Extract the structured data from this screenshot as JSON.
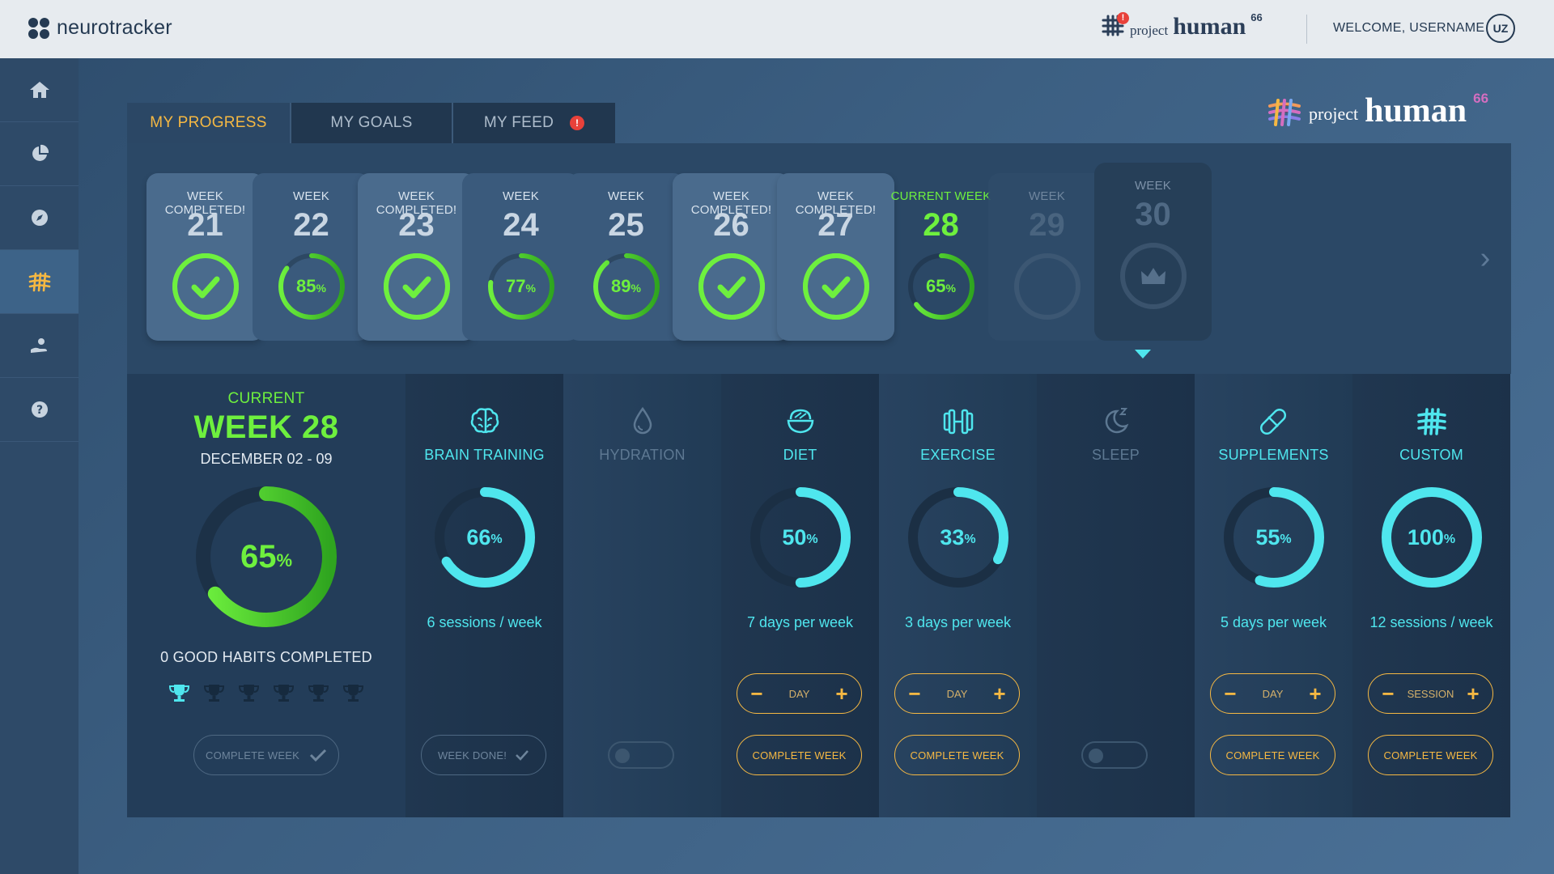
{
  "header": {
    "brand": "neurotracker",
    "partner_prefix": "project",
    "partner_name": "human",
    "partner_sup": "66",
    "notification_count": "!",
    "welcome": "WELCOME, USERNAME",
    "avatar_initials": "UZ"
  },
  "sidebar": {
    "items": [
      {
        "icon": "home-icon"
      },
      {
        "icon": "pie-chart-icon"
      },
      {
        "icon": "compass-icon"
      },
      {
        "icon": "project-human-icon",
        "active": true
      },
      {
        "icon": "hand-care-icon"
      },
      {
        "icon": "help-icon"
      }
    ]
  },
  "tabs": [
    {
      "label": "MY PROGRESS",
      "active": true
    },
    {
      "label": "MY GOALS"
    },
    {
      "label": "MY FEED",
      "alert": "!"
    }
  ],
  "brand_big": {
    "prefix": "project",
    "name": "human",
    "sup": "66"
  },
  "weeks": [
    {
      "label": "WEEK COMPLETED!",
      "number": "21",
      "status": "completed",
      "progress": 1.0
    },
    {
      "label": "WEEK",
      "number": "22",
      "status": "partial",
      "progress": 0.85,
      "pct": "85",
      "unit": "%"
    },
    {
      "label": "WEEK COMPLETED!",
      "number": "23",
      "status": "completed",
      "progress": 1.0
    },
    {
      "label": "WEEK",
      "number": "24",
      "status": "partial",
      "progress": 0.77,
      "pct": "77",
      "unit": "%"
    },
    {
      "label": "WEEK",
      "number": "25",
      "status": "partial",
      "progress": 0.89,
      "pct": "89",
      "unit": "%"
    },
    {
      "label": "WEEK COMPLETED!",
      "number": "26",
      "status": "completed",
      "progress": 1.0
    },
    {
      "label": "WEEK COMPLETED!",
      "number": "27",
      "status": "completed",
      "progress": 1.0
    },
    {
      "label": "CURRENT WEEK",
      "number": "28",
      "status": "current",
      "progress": 0.65,
      "pct": "65",
      "unit": "%"
    },
    {
      "label": "WEEK",
      "number": "29",
      "status": "future",
      "progress": 0
    },
    {
      "label": "WEEK",
      "number": "30",
      "status": "future2",
      "progress": 0
    }
  ],
  "summary": {
    "current_label": "CURRENT",
    "week_title": "WEEK 28",
    "dates": "DECEMBER 02 - 09",
    "progress": 0.65,
    "pct": "65",
    "unit": "%",
    "habits": "0 GOOD HABITS COMPLETED",
    "trophies_earned": 1,
    "trophies_total": 6,
    "button": "COMPLETE WEEK"
  },
  "categories": [
    {
      "name": "BRAIN TRAINING",
      "icon": "brain-icon",
      "active": true,
      "progress": 0.66,
      "pct": "66",
      "unit": "%",
      "freq": "6 sessions / week",
      "button": "WEEK DONE!",
      "button_dim": true,
      "button_check": true
    },
    {
      "name": "HYDRATION",
      "icon": "water-drop-icon",
      "active": false,
      "toggle": true
    },
    {
      "name": "DIET",
      "icon": "bowl-icon",
      "active": true,
      "progress": 0.5,
      "pct": "50",
      "unit": "%",
      "freq": "7 days per week",
      "stepper": "DAY",
      "button": "COMPLETE WEEK"
    },
    {
      "name": "EXERCISE",
      "icon": "dumbbell-icon",
      "active": true,
      "progress": 0.33,
      "pct": "33",
      "unit": "%",
      "freq": "3 days per week",
      "stepper": "DAY",
      "button": "COMPLETE WEEK"
    },
    {
      "name": "SLEEP",
      "icon": "moon-icon",
      "active": false,
      "toggle": true
    },
    {
      "name": "SUPPLEMENTS",
      "icon": "pill-icon",
      "active": true,
      "progress": 0.55,
      "pct": "55",
      "unit": "%",
      "freq": "5 days per week",
      "stepper": "DAY",
      "button": "COMPLETE WEEK"
    },
    {
      "name": "CUSTOM",
      "icon": "custom-hash-icon",
      "active": true,
      "progress": 1.0,
      "pct": "100",
      "unit": "%",
      "freq": "12 sessions / week",
      "stepper": "SESSION",
      "button": "COMPLETE WEEK"
    }
  ],
  "colors": {
    "green": "#6ef03e",
    "cyan": "#4fe6ee",
    "orange": "#f5b843",
    "alert": "#e8413a"
  }
}
